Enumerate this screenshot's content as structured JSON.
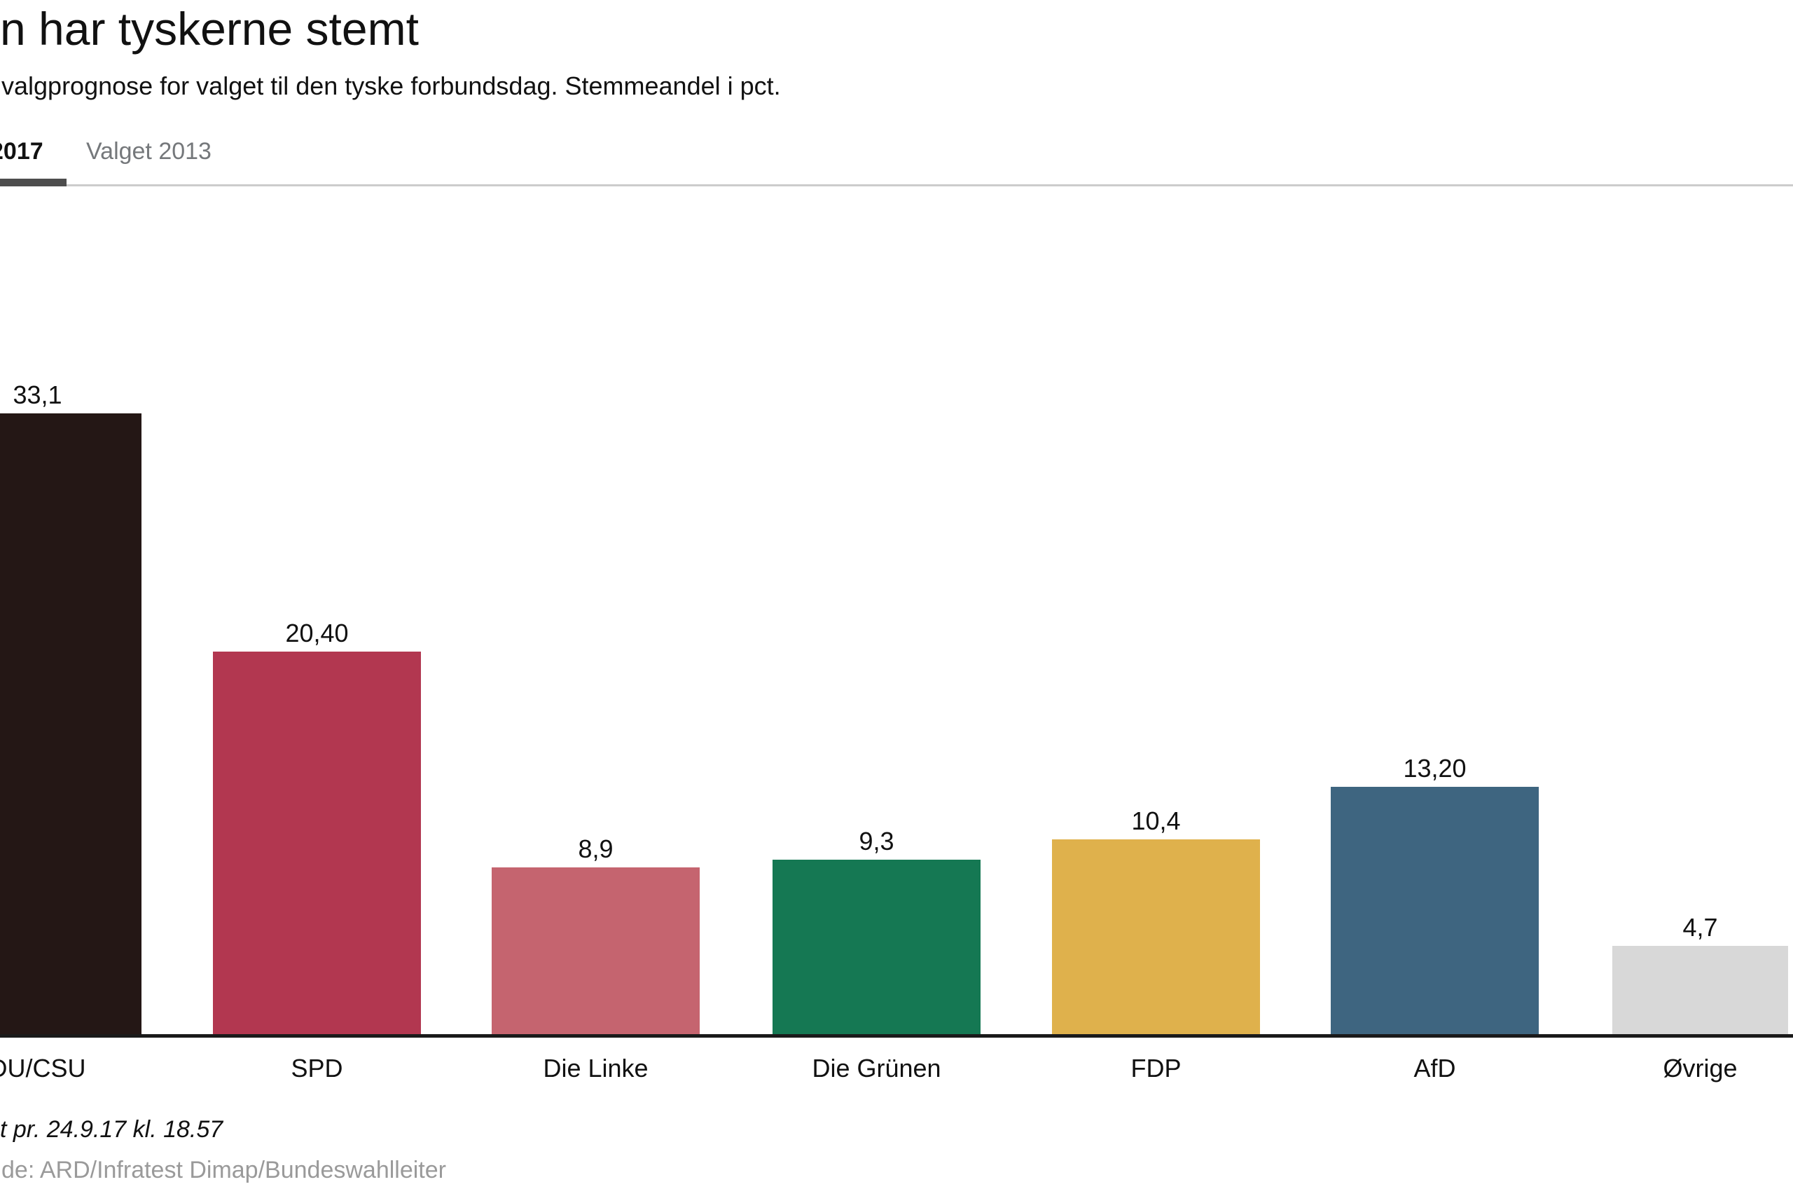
{
  "page": {
    "title": "n har tyskerne stemt",
    "subtitle": "valgprognose for valget til den tyske forbundsdag. Stemmeandel i pct."
  },
  "tabs": {
    "active": {
      "label": "2017"
    },
    "inactive": {
      "label": "Valget 2013"
    }
  },
  "footer": {
    "updated_note": "t pr. 24.9.17 kl. 18.57",
    "source_note": "de: ARD/Infratest Dimap/Bundeswahlleiter"
  },
  "colors": {
    "active_tab_underline": "#4d4d4d",
    "tabs_divider": "#cccccc",
    "axis": "#1a1a1a",
    "text_primary": "#111111",
    "tab_inactive_text": "#75787b",
    "source_text": "#9a9a9a"
  },
  "chart_data": {
    "type": "bar",
    "title": "n har tyskerne stemt",
    "subtitle": "valgprognose for valget til den tyske forbundsdag. Stemmeandel i pct.",
    "unit": "pct.",
    "categories": [
      "DU/CSU",
      "SPD",
      "Die Linke",
      "Die Grünen",
      "FDP",
      "AfD",
      "Øvrige"
    ],
    "values": [
      33.1,
      20.4,
      8.9,
      9.3,
      10.4,
      13.2,
      4.7
    ],
    "value_labels": [
      "33,1",
      "20,40",
      "8,9",
      "9,3",
      "10,4",
      "13,20",
      "4,7"
    ],
    "bar_colors": [
      "#241715",
      "#b23750",
      "#c5646f",
      "#157853",
      "#dfb14c",
      "#3e6580",
      "#d8d8d8"
    ],
    "ylim": [
      0,
      35
    ],
    "grid": false,
    "legend": false
  }
}
